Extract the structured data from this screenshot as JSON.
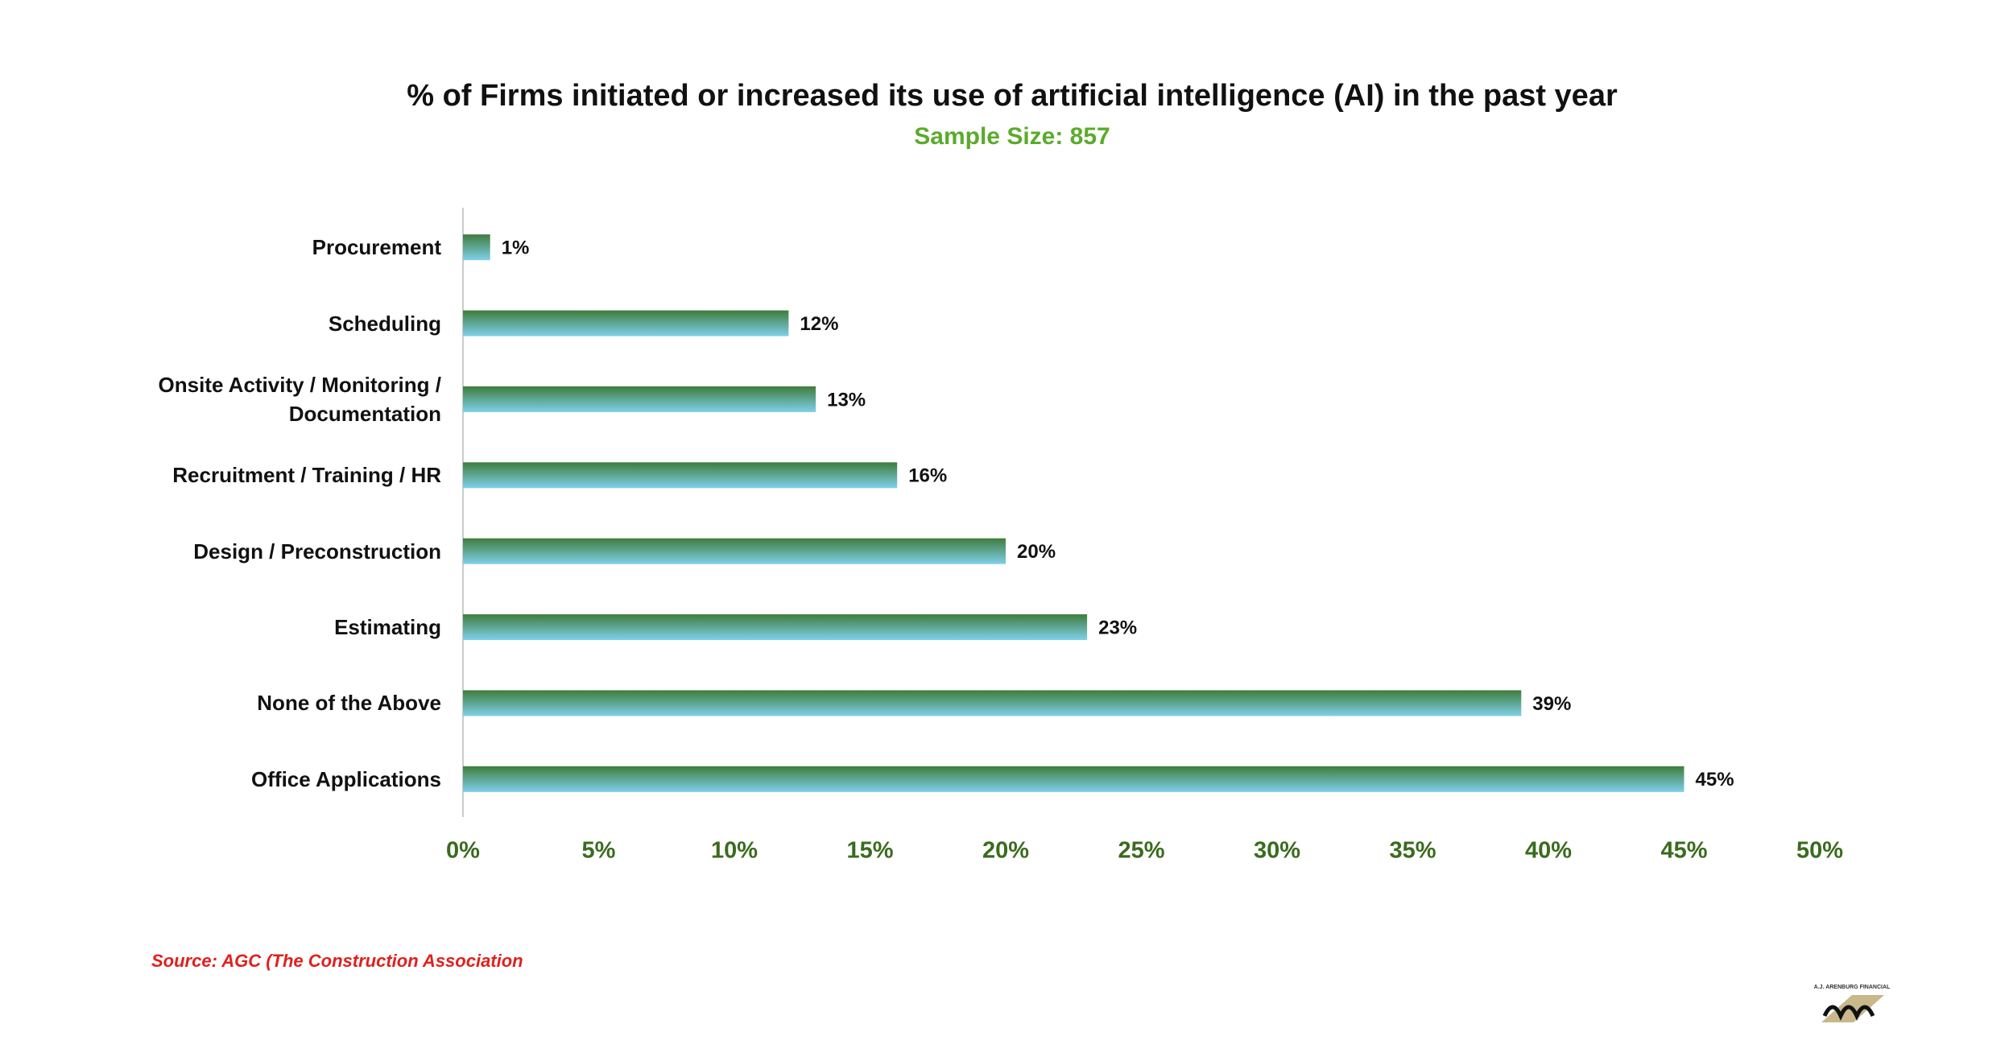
{
  "chart_data": {
    "type": "bar",
    "orientation": "horizontal",
    "title": "% of Firms initiated or increased its use of artificial intelligence (AI) in the past year",
    "subtitle": "Sample Size: 857",
    "categories": [
      "Procurement",
      "Scheduling",
      "Onsite Activity / Monitoring / Documentation",
      "Recruitment / Training / HR",
      "Design / Preconstruction",
      "Estimating",
      "None of the Above",
      "Office Applications"
    ],
    "values": [
      1,
      12,
      13,
      16,
      20,
      23,
      39,
      45
    ],
    "value_labels": [
      "1%",
      "12%",
      "13%",
      "16%",
      "20%",
      "23%",
      "39%",
      "45%"
    ],
    "colors": [
      "#3e7d3c",
      "#7fd0ea"
    ],
    "xlim": [
      0,
      50
    ],
    "xticks": [
      {
        "value": 0,
        "label": "0%"
      },
      {
        "value": 5,
        "label": "5%"
      },
      {
        "value": 10,
        "label": "10%"
      },
      {
        "value": 15,
        "label": "15%"
      },
      {
        "value": 20,
        "label": "20%"
      },
      {
        "value": 25,
        "label": "25%"
      },
      {
        "value": 30,
        "label": "30%"
      },
      {
        "value": 35,
        "label": "35%"
      },
      {
        "value": 40,
        "label": "40%"
      },
      {
        "value": 45,
        "label": "45%"
      },
      {
        "value": 50,
        "label": "50%"
      }
    ],
    "grid": false,
    "source": "Source: AGC (The Construction Association",
    "logo_text": "A.J. ARENBURG FINANCIAL"
  }
}
